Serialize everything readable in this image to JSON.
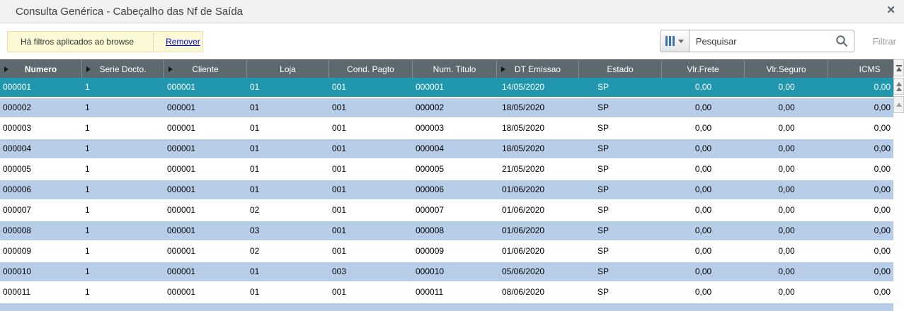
{
  "window": {
    "title": "Consulta Genérica - Cabeçalho das Nf de Saída",
    "close_icon": "✕"
  },
  "toolbar": {
    "filter_notice": "Há filtros aplicados ao browse",
    "remove_link": "Remover",
    "search_placeholder": "Pesquisar",
    "filter_label": "Filtrar"
  },
  "table": {
    "columns": [
      {
        "label": "Numero",
        "sorted": true,
        "bold": true
      },
      {
        "label": "Serie Docto.",
        "sorted": true
      },
      {
        "label": "Cliente",
        "sorted": true
      },
      {
        "label": "Loja"
      },
      {
        "label": "Cond. Pagto"
      },
      {
        "label": "Num. Titulo"
      },
      {
        "label": "DT Emissao",
        "sorted": true
      },
      {
        "label": "Estado"
      },
      {
        "label": "Vlr.Frete"
      },
      {
        "label": "Vlr.Seguro"
      },
      {
        "label": "ICMS"
      }
    ],
    "selected_row_index": 0,
    "rows": [
      [
        "000001",
        "1",
        "000001",
        "01",
        "001",
        "000001",
        "14/05/2020",
        "SP",
        "0,00",
        "0,00",
        "0,00"
      ],
      [
        "000002",
        "1",
        "000001",
        "01",
        "001",
        "000002",
        "18/05/2020",
        "SP",
        "0,00",
        "0,00",
        "0,00"
      ],
      [
        "000003",
        "1",
        "000001",
        "01",
        "001",
        "000003",
        "18/05/2020",
        "SP",
        "0,00",
        "0,00",
        "0,00"
      ],
      [
        "000004",
        "1",
        "000001",
        "01",
        "001",
        "000004",
        "18/05/2020",
        "SP",
        "0,00",
        "0,00",
        "0,00"
      ],
      [
        "000005",
        "1",
        "000001",
        "01",
        "001",
        "000005",
        "21/05/2020",
        "SP",
        "0,00",
        "0,00",
        "0,00"
      ],
      [
        "000006",
        "1",
        "000001",
        "01",
        "001",
        "000006",
        "01/06/2020",
        "SP",
        "0,00",
        "0,00",
        "0,00"
      ],
      [
        "000007",
        "1",
        "000001",
        "02",
        "001",
        "000007",
        "01/06/2020",
        "SP",
        "0,00",
        "0,00",
        "0,00"
      ],
      [
        "000008",
        "1",
        "000001",
        "03",
        "001",
        "000008",
        "01/06/2020",
        "SP",
        "0,00",
        "0,00",
        "0,00"
      ],
      [
        "000009",
        "1",
        "000001",
        "02",
        "001",
        "000009",
        "01/06/2020",
        "SP",
        "0,00",
        "0,00",
        "0,00"
      ],
      [
        "000010",
        "1",
        "000001",
        "01",
        "003",
        "000010",
        "05/06/2020",
        "SP",
        "0,00",
        "0,00",
        "0,00"
      ],
      [
        "000011",
        "1",
        "000001",
        "01",
        "001",
        "000011",
        "08/06/2020",
        "SP",
        "0,00",
        "0,00",
        "0,00"
      ]
    ]
  },
  "scrollbar": {
    "buttons": [
      "scroll-to-top-icon",
      "scroll-page-up-icon",
      "scroll-line-up-icon"
    ]
  },
  "colors": {
    "selected-row": "#2097AD",
    "alt-row": "#B7CDE8",
    "header-bg": "#5D686F",
    "link-blue": "#0000DE",
    "notice-bg": "#FBF9D5",
    "accent-blue": "#3C74AE"
  }
}
